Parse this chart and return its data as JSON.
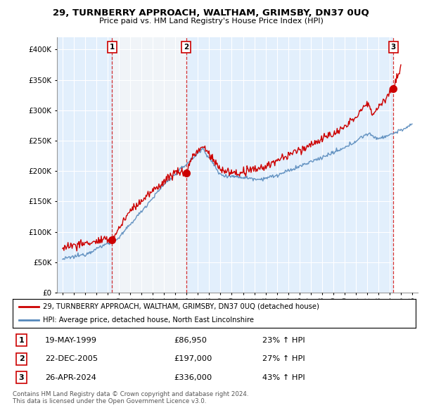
{
  "title": "29, TURNBERRY APPROACH, WALTHAM, GRIMSBY, DN37 0UQ",
  "subtitle": "Price paid vs. HM Land Registry's House Price Index (HPI)",
  "property_label": "29, TURNBERRY APPROACH, WALTHAM, GRIMSBY, DN37 0UQ (detached house)",
  "hpi_label": "HPI: Average price, detached house, North East Lincolnshire",
  "sales": [
    {
      "num": 1,
      "date": "19-MAY-1999",
      "price": 86950,
      "year": 1999.38,
      "hpi_pct": "23% ↑ HPI"
    },
    {
      "num": 2,
      "date": "22-DEC-2005",
      "price": 197000,
      "year": 2005.97,
      "hpi_pct": "27% ↑ HPI"
    },
    {
      "num": 3,
      "date": "26-APR-2024",
      "price": 336000,
      "year": 2024.32,
      "hpi_pct": "43% ↑ HPI"
    }
  ],
  "footer1": "Contains HM Land Registry data © Crown copyright and database right 2024.",
  "footer2": "This data is licensed under the Open Government Licence v3.0.",
  "ylim": [
    0,
    420000
  ],
  "yticks": [
    0,
    50000,
    100000,
    150000,
    200000,
    250000,
    300000,
    350000,
    400000
  ],
  "xlim": [
    1994.5,
    2026.5
  ],
  "xticks": [
    1995,
    1996,
    1997,
    1998,
    1999,
    2000,
    2001,
    2002,
    2003,
    2004,
    2005,
    2006,
    2007,
    2008,
    2009,
    2010,
    2011,
    2012,
    2013,
    2014,
    2015,
    2016,
    2017,
    2018,
    2019,
    2020,
    2021,
    2022,
    2023,
    2024,
    2025,
    2026
  ],
  "property_color": "#cc0000",
  "hpi_color": "#5588bb",
  "shade_color": "#ddeeff",
  "background_color": "#ffffff",
  "plot_bg_color": "#f0f4f8",
  "hatch_color": "#cccccc"
}
